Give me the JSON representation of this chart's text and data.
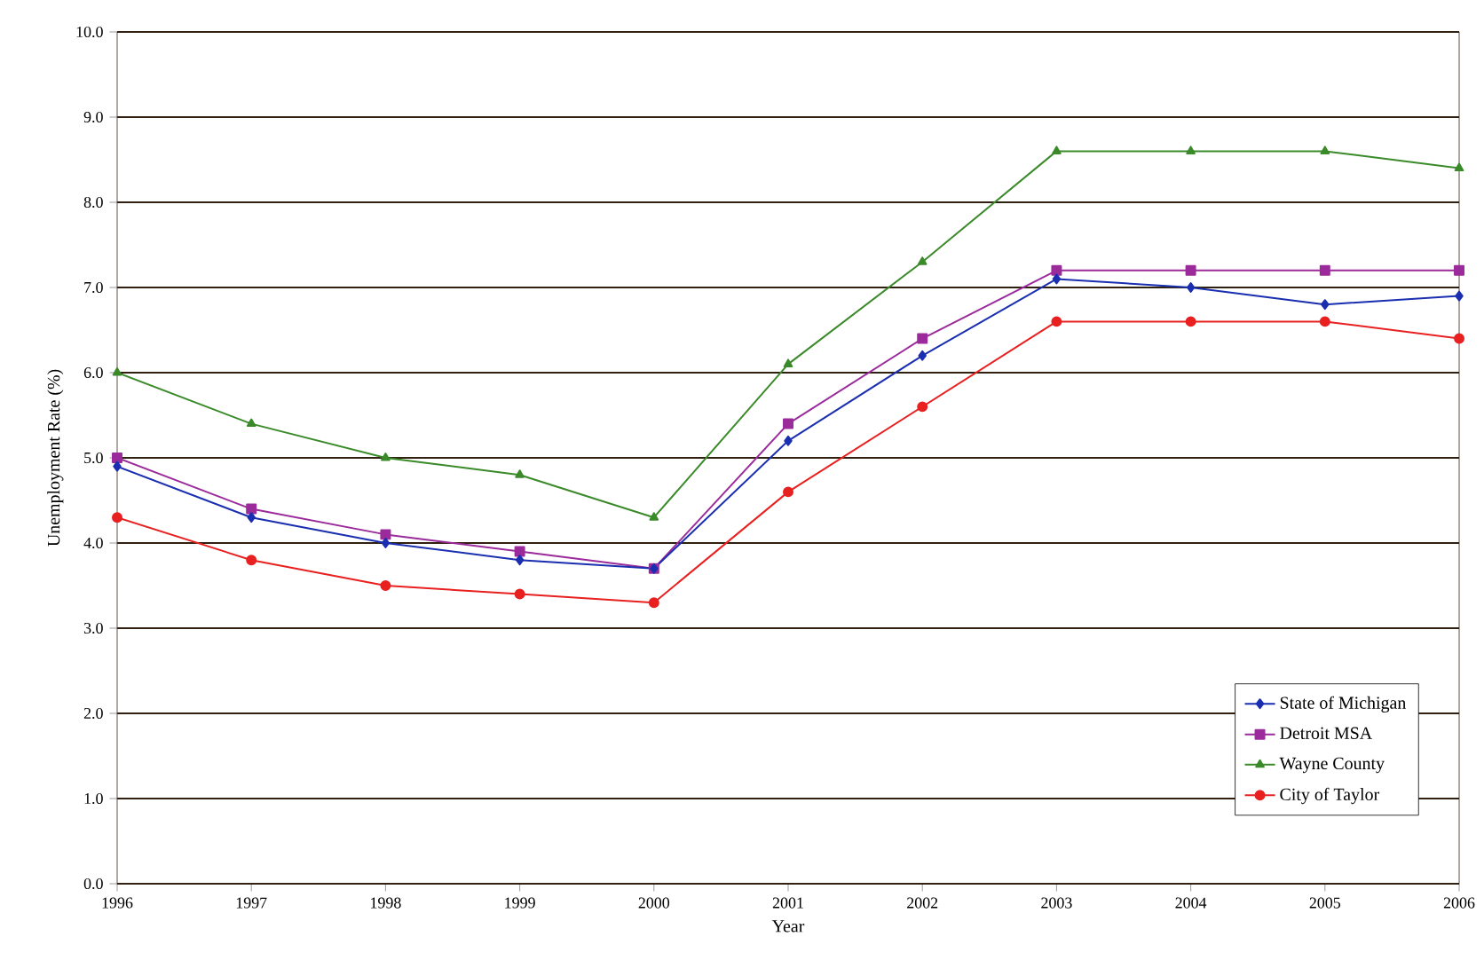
{
  "chart_data": {
    "type": "line",
    "xlabel": "Year",
    "ylabel": "Unemployment Rate (%)",
    "x": [
      1996,
      1997,
      1998,
      1999,
      2000,
      2001,
      2002,
      2003,
      2004,
      2005,
      2006
    ],
    "xlim": [
      1996,
      2006
    ],
    "xticks": [
      1996,
      1997,
      1998,
      1999,
      2000,
      2001,
      2002,
      2003,
      2004,
      2005,
      2006
    ],
    "ylim": [
      0,
      10
    ],
    "yticks": [
      {
        "value": 0,
        "label": "0.0"
      },
      {
        "value": 1,
        "label": "1.0"
      },
      {
        "value": 2,
        "label": "2.0"
      },
      {
        "value": 3,
        "label": "3.0"
      },
      {
        "value": 4,
        "label": "4.0"
      },
      {
        "value": 5,
        "label": "5.0"
      },
      {
        "value": 6,
        "label": "6.0"
      },
      {
        "value": 7,
        "label": "7.0"
      },
      {
        "value": 8,
        "label": "8.0"
      },
      {
        "value": 9,
        "label": "9.0"
      },
      {
        "value": 10,
        "label": "10.0"
      }
    ],
    "grid": "y",
    "legend": "bottom right",
    "series": [
      {
        "name": "State of Michigan",
        "color": "#1a2fb0",
        "marker": "diamond",
        "values": [
          4.9,
          4.3,
          4.0,
          3.8,
          3.7,
          5.2,
          6.2,
          7.1,
          7.0,
          6.8,
          6.9
        ]
      },
      {
        "name": "Detroit MSA",
        "color": "#9b2a9b",
        "marker": "square",
        "values": [
          5.0,
          4.4,
          4.1,
          3.9,
          3.7,
          5.4,
          6.4,
          7.2,
          7.2,
          7.2,
          7.2
        ]
      },
      {
        "name": "Wayne County",
        "color": "#3a8a2a",
        "marker": "triangle",
        "values": [
          6.0,
          5.4,
          5.0,
          4.8,
          4.3,
          6.1,
          7.3,
          8.6,
          8.6,
          8.6,
          8.4
        ]
      },
      {
        "name": "City of Taylor",
        "color": "#e82020",
        "marker": "circle",
        "values": [
          4.3,
          3.8,
          3.5,
          3.4,
          3.3,
          4.6,
          5.6,
          6.6,
          6.6,
          6.6,
          6.4
        ]
      }
    ]
  }
}
